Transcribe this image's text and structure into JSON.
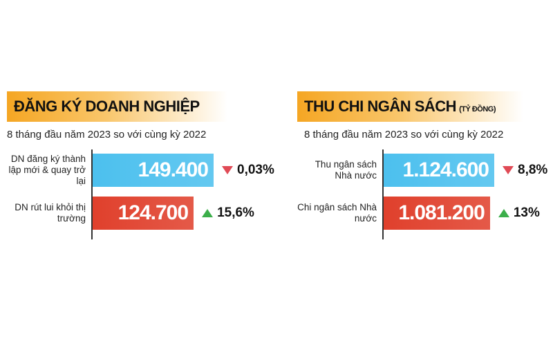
{
  "chart_data": [
    {
      "type": "bar",
      "title": "ĐĂNG KÝ DOANH NGHIỆP",
      "subtitle": "8 tháng đầu năm 2023 so với cùng kỳ 2022",
      "categories": [
        "DN đăng ký thành lập mới & quay trở lại",
        "DN rút lui khỏi thị trường"
      ],
      "values": [
        149400,
        124700
      ],
      "value_labels": [
        "149.400",
        "124.700"
      ],
      "colors": [
        "#4cc0ee",
        "#e0402c"
      ],
      "changes": [
        -0.03,
        15.6
      ],
      "change_labels": [
        "0,03%",
        "15,6%"
      ]
    },
    {
      "type": "bar",
      "title": "THU CHI NGÂN SÁCH",
      "unit": "(TỶ ĐỒNG)",
      "subtitle": "8 tháng đầu năm 2023 so với cùng kỳ 2022",
      "categories": [
        "Thu ngân sách Nhà nước",
        "Chi ngân sách Nhà nước"
      ],
      "values": [
        1124600,
        1081200
      ],
      "value_labels": [
        "1.124.600",
        "1.081.200"
      ],
      "colors": [
        "#4cc0ee",
        "#e0402c"
      ],
      "changes": [
        -8.8,
        13
      ],
      "change_labels": [
        "8,8%",
        "13%"
      ]
    }
  ]
}
